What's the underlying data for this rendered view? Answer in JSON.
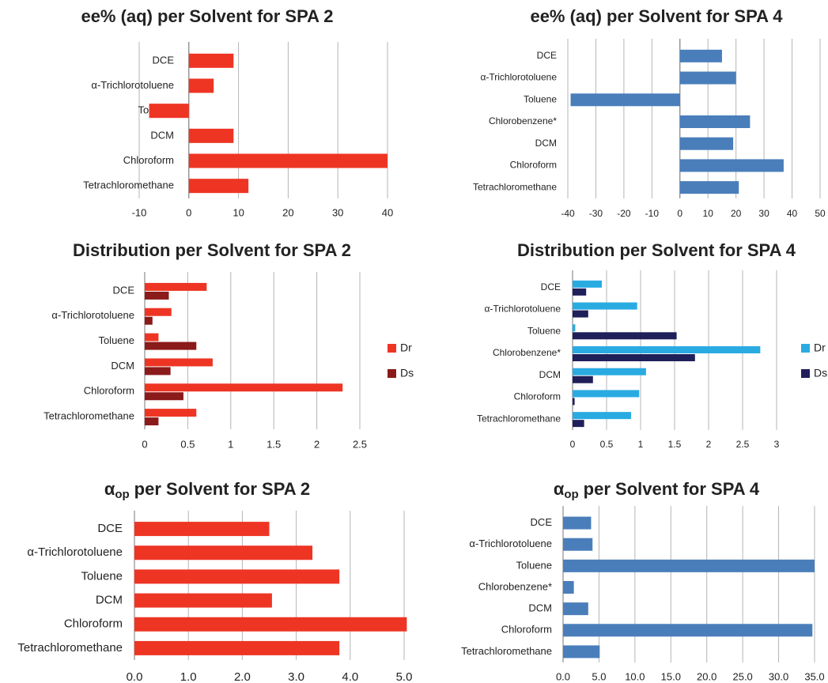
{
  "chart_data": [
    {
      "type": "bar",
      "orientation": "horizontal",
      "title": "ee% (aq) per Solvent for SPA 2",
      "categories": [
        "DCE",
        "α-Trichlorotoluene",
        "Toluene",
        "DCM",
        "Chloroform",
        "Tetrachloromethane"
      ],
      "values": [
        9,
        5,
        -8,
        9,
        40,
        12
      ],
      "color": "#ee3524",
      "xlim": [
        -10,
        40
      ],
      "xticks": [
        -10,
        0,
        10,
        20,
        30,
        40
      ],
      "grid": true
    },
    {
      "type": "bar",
      "orientation": "horizontal",
      "title": "ee% (aq) per Solvent for SPA 4",
      "categories": [
        "DCE",
        "α-Trichlorotoluene",
        "Toluene",
        "Chlorobenzene*",
        "DCM",
        "Chloroform",
        "Tetrachloromethane"
      ],
      "values": [
        15,
        20,
        -39,
        25,
        19,
        37,
        21
      ],
      "color": "#4a7ebb",
      "xlim": [
        -40,
        50
      ],
      "xticks": [
        -40,
        -30,
        -20,
        -10,
        0,
        10,
        20,
        30,
        40,
        50
      ],
      "grid": true
    },
    {
      "type": "bar",
      "orientation": "horizontal",
      "title": "Distribution per Solvent for SPA 2",
      "categories": [
        "DCE",
        "α-Trichlorotoluene",
        "Toluene",
        "DCM",
        "Chloroform",
        "Tetrachloromethane"
      ],
      "series": [
        {
          "name": "Dr",
          "color": "#ee3524",
          "values": [
            0.72,
            0.31,
            0.16,
            0.79,
            2.3,
            0.6
          ]
        },
        {
          "name": "Ds",
          "color": "#8b1a1a",
          "values": [
            0.28,
            0.09,
            0.6,
            0.3,
            0.45,
            0.16
          ]
        }
      ],
      "xlim": [
        0,
        2.5
      ],
      "xticks": [
        0,
        0.5,
        1,
        1.5,
        2,
        2.5
      ],
      "grid": true,
      "legend": "right"
    },
    {
      "type": "bar",
      "orientation": "horizontal",
      "title": "Distribution per Solvent for SPA 4",
      "categories": [
        "DCE",
        "α-Trichlorotoluene",
        "Toluene",
        "Chlorobenzene*",
        "DCM",
        "Chloroform",
        "Tetrachloromethane"
      ],
      "series": [
        {
          "name": "Dr",
          "color": "#29abe2",
          "values": [
            0.43,
            0.95,
            0.04,
            2.76,
            1.08,
            0.98,
            0.86
          ]
        },
        {
          "name": "Ds",
          "color": "#1f1f5a",
          "values": [
            0.2,
            0.23,
            1.53,
            1.8,
            0.3,
            0.03,
            0.17
          ]
        }
      ],
      "xlim": [
        0,
        3
      ],
      "xticks": [
        0,
        0.5,
        1,
        1.5,
        2,
        2.5,
        3
      ],
      "grid": true,
      "legend": "right"
    },
    {
      "type": "bar",
      "orientation": "horizontal",
      "title": {
        "symbol": "α",
        "subscript": "op",
        "text": "per Solvent for SPA 2"
      },
      "categories": [
        "DCE",
        "α-Trichlorotoluene",
        "Toluene",
        "DCM",
        "Chloroform",
        "Tetrachloromethane"
      ],
      "values": [
        2.5,
        3.3,
        3.8,
        2.55,
        5.05,
        3.8
      ],
      "color": "#ee3524",
      "xlim": [
        0,
        5
      ],
      "xticks": [
        {
          "value": 0,
          "label": "0.0"
        },
        {
          "value": 1,
          "label": "1.0"
        },
        {
          "value": 2,
          "label": "2.0"
        },
        {
          "value": 3,
          "label": "3.0"
        },
        {
          "value": 4,
          "label": "4.0"
        },
        {
          "value": 5,
          "label": "5.0"
        }
      ],
      "grid": true
    },
    {
      "type": "bar",
      "orientation": "horizontal",
      "title": {
        "symbol": "α",
        "subscript": "op",
        "text": "per Solvent for SPA 4"
      },
      "categories": [
        "DCE",
        "α-Trichlorotoluene",
        "Toluene",
        "Chlorobenzene*",
        "DCM",
        "Chloroform",
        "Tetrachloromethane"
      ],
      "values": [
        3.9,
        4.1,
        35,
        1.5,
        3.5,
        34.7,
        5.1
      ],
      "color": "#4a7ebb",
      "xlim": [
        0,
        35
      ],
      "xticks": [
        {
          "value": 0,
          "label": "0.0"
        },
        {
          "value": 5,
          "label": "5.0"
        },
        {
          "value": 10,
          "label": "10.0"
        },
        {
          "value": 15,
          "label": "15.0"
        },
        {
          "value": 20,
          "label": "20.0"
        },
        {
          "value": 25,
          "label": "25.0"
        },
        {
          "value": 30,
          "label": "30.0"
        },
        {
          "value": 35,
          "label": "35.0"
        }
      ],
      "grid": true
    }
  ]
}
